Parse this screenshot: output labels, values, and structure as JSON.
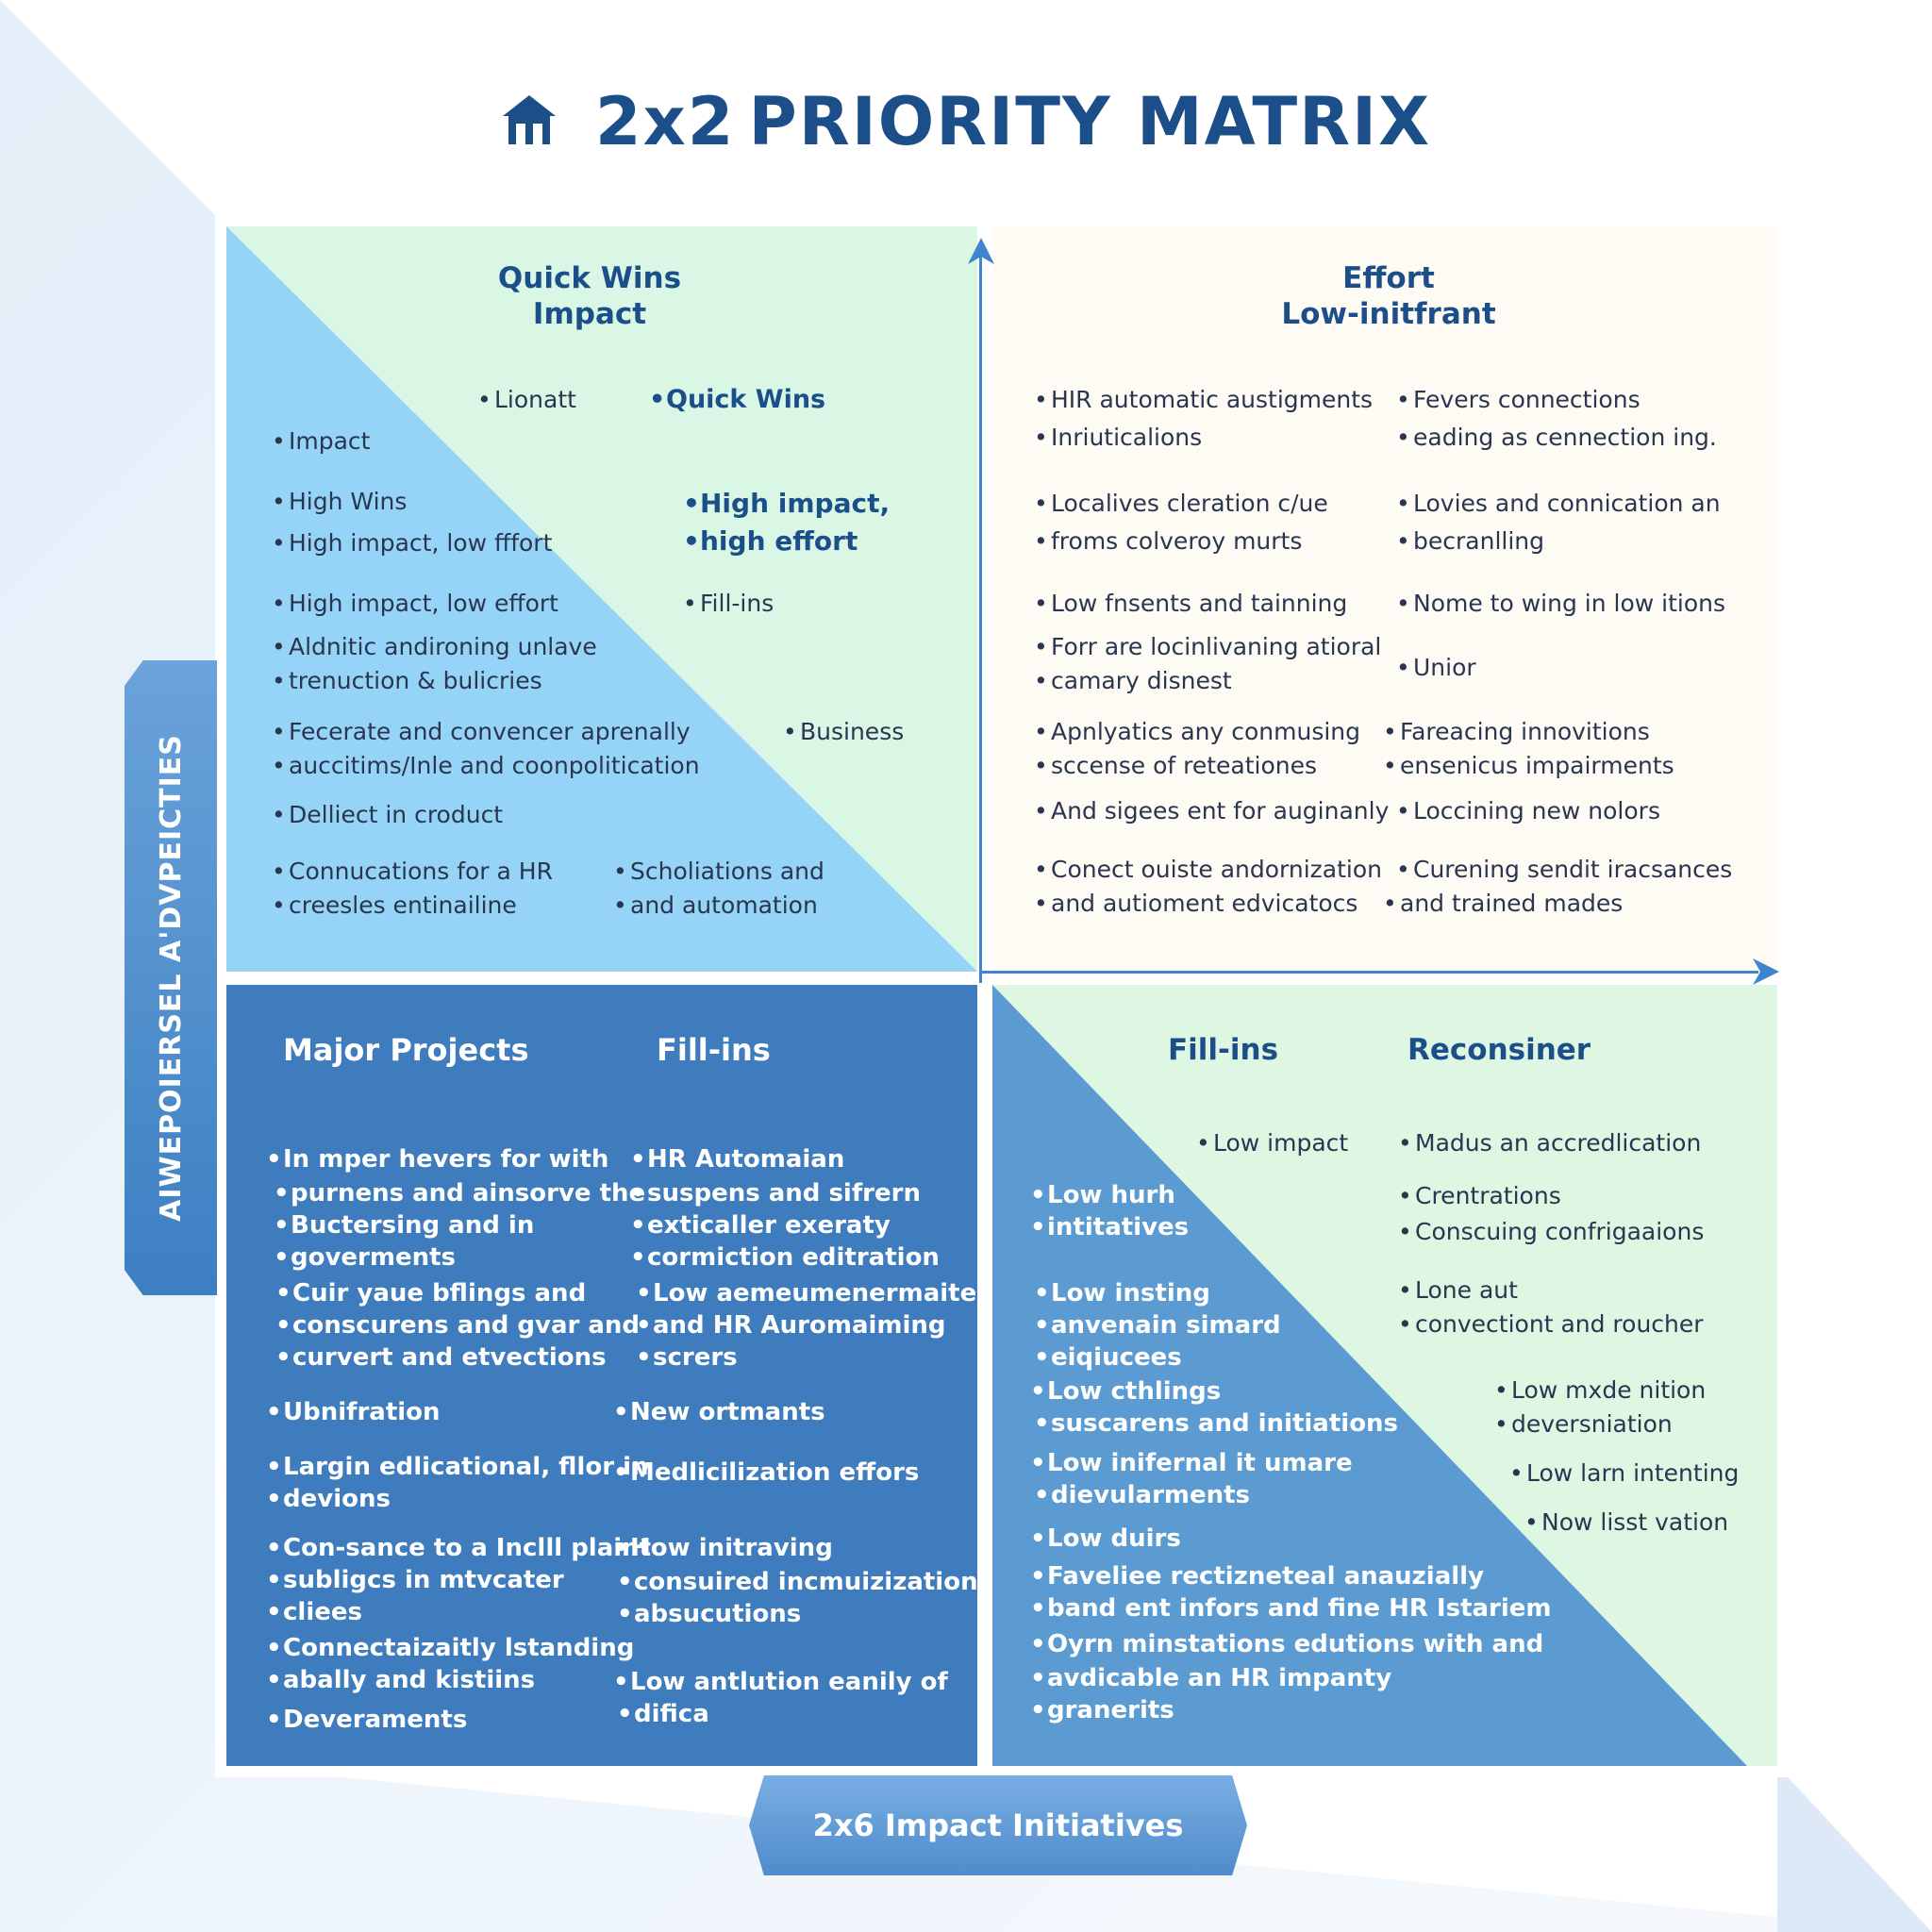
{
  "colors": {
    "accent": "#1c4f8a",
    "axis": "#3d86cf",
    "quick_wins_blue": "#95d4f6",
    "quick_wins_green": "#d9f7e4",
    "top_right_bg": "#fdfbf3",
    "major_projects_bg": "#3f7cbd",
    "bottom_right_blue": "#5b9bd2",
    "bottom_right_green": "#ddf7e2"
  },
  "title": {
    "icon": "house-icon",
    "prefix": "2x2",
    "main": "PRIORITY MATRIX"
  },
  "axes": {
    "y_label": "AIWEPOIERSEL A'DVPEICTIES",
    "x_label": "2x6 Impact Initiatives"
  },
  "top_left": {
    "heading_line1": "Quick Wins",
    "heading_line2": "Impact",
    "items": [
      "Lionatt",
      "Quick Wins",
      "Impact",
      "High Wins",
      "High impact, low fffort",
      "High impact,",
      "high effort",
      "High impact, low effort",
      "Fill-ins",
      "Aldnitic andironing unlave",
      "trenuction & bulicries",
      "Fecerate and convencer aprenally",
      "auccitims/Inle and coonpolitication",
      "Business",
      "Dellіect in croduct",
      "Connucations for a HR",
      "creesles entinailine",
      "Scholiations and",
      "and automation"
    ]
  },
  "top_right": {
    "heading_line1": "Effort",
    "heading_line2": "Low-initfrant",
    "items": [
      "HIR automatic austigments",
      "Inriuticalions",
      "Fevers connections",
      "eading as cennection ing.",
      "Localives cleration c/ue",
      "froms colveroy murts",
      "Lovies and connication an",
      "becranlling",
      "Low fnsents and tainning",
      "Nome to wing in low itions",
      "Forr are locinlivaning atioral",
      "camary disnest",
      "Unior",
      "Apnlyatics any conmusing",
      "sccense of reteationes",
      "Fareacing innovitions",
      "ensenicus impairments",
      "And sigees ent for auginanly",
      "Loccining new nolors",
      "Conect ouiste andornization",
      "and autioment edvicatocs",
      "Curening sendit iracsances",
      "and trained mades"
    ]
  },
  "bottom_left": {
    "heading_left": "Major Projects",
    "heading_right": "Fill-ins",
    "items": [
      "In mper hevers for with",
      "purnens and ainsorve the",
      "Buctersing and in",
      "goverments",
      "Cuir yaue bflings and",
      "conscurens and gvar and·",
      "curvert and etvections",
      "HR Automaian",
      "suspens and sifrern",
      "exticaller exeraty",
      "cormiction editration",
      "Low aemeumenermaited",
      "and HR Auromaiming",
      "scrers",
      "Ubnifration",
      "New ortmants",
      "Largin edlicational, fllor in",
      "devions",
      "Medlicilization effors",
      "Con-sance to a Inclll plaint",
      "subligcs in mtvcater",
      "cliees",
      "How initraving",
      "consuired incmuizization",
      "absucutions",
      "Connectaizaitly lstanding",
      "abally and kistiins",
      "Deveraments",
      "Low antlution eanily of",
      "difica"
    ]
  },
  "bottom_right": {
    "heading_left": "Fill-ins",
    "heading_right": "Reconsiner",
    "items": [
      "Low impact",
      "Madus an accredlication",
      "Low hurh",
      "intitatives",
      "Crentrations",
      "Conscuing confrigaaions",
      "Low insting",
      "anvenain simard",
      "eiqiucees",
      "Lone aut",
      "convectiont and roucher",
      "Low cthlings",
      "suscarens and initiations",
      "Low mxde nition",
      "deversniation",
      "Low inifernal it umare",
      "dievularments",
      "Low larn intenting",
      "Now lisst vation",
      "Low duirs",
      "Faveliee rectizneteal anauzially",
      "band ent infors and fine HR Istariem",
      "Oyrn minstations edutions with and",
      "avdicable an HR impanty",
      "granerits"
    ]
  }
}
